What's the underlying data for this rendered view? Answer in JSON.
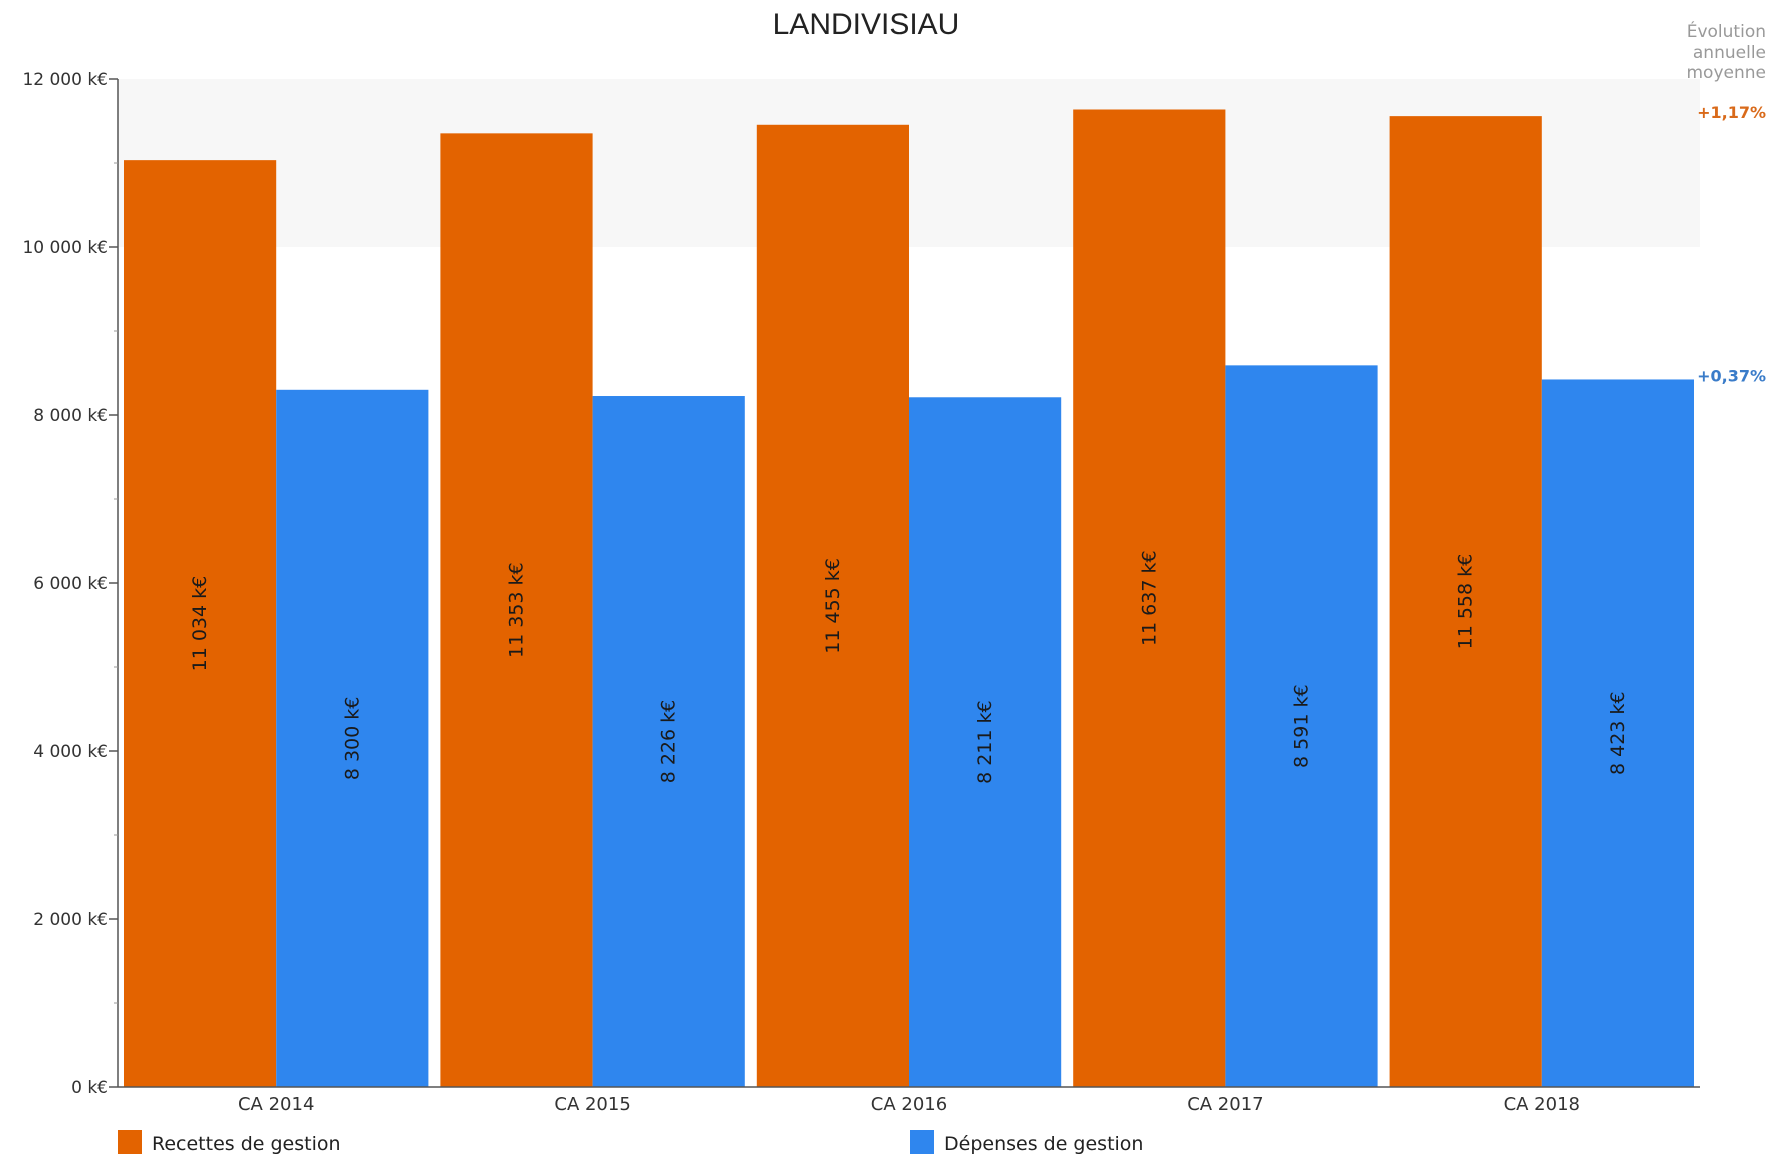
{
  "chart_data": {
    "type": "bar",
    "title": "LANDIVISIAU",
    "categories": [
      "CA 2014",
      "CA 2015",
      "CA 2016",
      "CA 2017",
      "CA 2018"
    ],
    "series": [
      {
        "name": "Recettes de gestion",
        "color": "#E36300",
        "values": [
          11034,
          11353,
          11455,
          11637,
          11558
        ],
        "labels": [
          "11 034 k€",
          "11 353 k€",
          "11 455 k€",
          "11 637 k€",
          "11 558 k€"
        ]
      },
      {
        "name": "Dépenses de gestion",
        "color": "#2F86EE",
        "values": [
          8300,
          8226,
          8211,
          8591,
          8423
        ],
        "labels": [
          "8 300 k€",
          "8 226 k€",
          "8 211 k€",
          "8 591 k€",
          "8 423 k€"
        ]
      }
    ],
    "ylim": [
      0,
      12000
    ],
    "yticks": [
      0,
      2000,
      4000,
      6000,
      8000,
      10000,
      12000
    ],
    "ytick_labels": [
      "0 k€",
      "2 000 k€",
      "4 000 k€",
      "6 000 k€",
      "8 000 k€",
      "10 000 k€",
      "12 000 k€"
    ],
    "shaded_band": [
      10000,
      12000
    ],
    "legend_position": "bottom",
    "grid": false,
    "annotation": {
      "heading": [
        "Évolution",
        "annuelle",
        "moyenne"
      ],
      "values": [
        {
          "series": "Recettes de gestion",
          "text": "+1,17%",
          "color": "#D96A1A"
        },
        {
          "series": "Dépenses de gestion",
          "text": "+0,37%",
          "color": "#3A7CC9"
        }
      ]
    }
  }
}
